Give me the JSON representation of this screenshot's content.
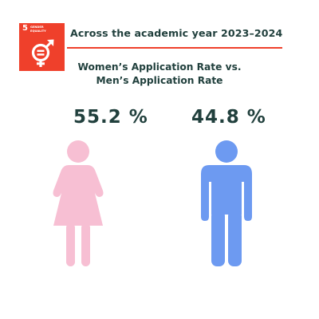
{
  "badge": {
    "number": "5",
    "title_line1": "GENDER",
    "title_line2": "EQUALITY",
    "icon": "gender-equality-icon",
    "color": "#ef402b"
  },
  "header": {
    "text": "Across the academic year 2023–2024"
  },
  "subtitle": {
    "line1": "Women’s Application Rate vs.",
    "line2": "Men’s Application Rate"
  },
  "women": {
    "value": "55.2 %",
    "icon": "female-figure-icon",
    "color": "#f7bfd3"
  },
  "men": {
    "value": "44.8 %",
    "icon": "male-figure-icon",
    "color": "#6d9af1"
  }
}
